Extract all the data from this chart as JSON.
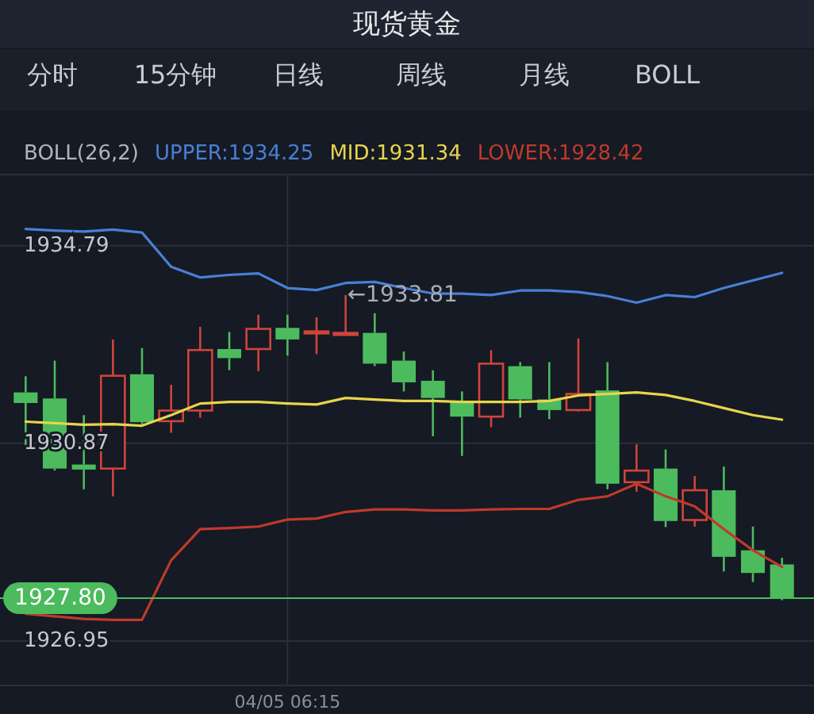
{
  "chart_data": {
    "type": "candlestick",
    "title": "现货黄金",
    "legend_title": "BOLL(26,2)",
    "legend": "top left",
    "grid": true,
    "categories": [
      null,
      null,
      null,
      null,
      null,
      null,
      null,
      null,
      null,
      "04/05 06:15",
      null,
      null,
      null,
      null,
      null,
      null,
      null,
      null,
      null,
      null,
      null,
      null,
      null,
      null,
      null,
      null,
      null
    ],
    "ohlc": [
      [
        1931.88,
        1932.2,
        1930.73,
        1931.67
      ],
      [
        1931.76,
        1932.51,
        1930.33,
        1930.37
      ],
      [
        1930.45,
        1931.43,
        1929.96,
        1930.35
      ],
      [
        1930.37,
        1932.93,
        1929.82,
        1932.21
      ],
      [
        1932.24,
        1932.76,
        1931.25,
        1931.29
      ],
      [
        1931.31,
        1932.03,
        1931.08,
        1931.52
      ],
      [
        1931.52,
        1933.18,
        1931.38,
        1932.72
      ],
      [
        1932.74,
        1933.08,
        1932.32,
        1932.56
      ],
      [
        1932.74,
        1933.42,
        1932.3,
        1933.14
      ],
      [
        1933.16,
        1933.42,
        1932.61,
        1932.93
      ],
      [
        1933.07,
        1933.37,
        1932.64,
        1933.09
      ],
      [
        1933.05,
        1933.81,
        1933.02,
        1933.06
      ],
      [
        1933.06,
        1933.45,
        1932.4,
        1932.45
      ],
      [
        1932.51,
        1932.69,
        1931.9,
        1932.08
      ],
      [
        1932.11,
        1932.32,
        1931.01,
        1931.77
      ],
      [
        1931.71,
        1931.9,
        1930.62,
        1931.4
      ],
      [
        1931.4,
        1932.72,
        1931.19,
        1932.45
      ],
      [
        1932.4,
        1932.48,
        1931.38,
        1931.74
      ],
      [
        1931.74,
        1932.48,
        1931.35,
        1931.53
      ],
      [
        1931.53,
        1932.95,
        1931.5,
        1931.85
      ],
      [
        1931.92,
        1932.48,
        1929.96,
        1930.07
      ],
      [
        1930.1,
        1930.85,
        1929.91,
        1930.33
      ],
      [
        1930.37,
        1930.75,
        1929.21,
        1929.33
      ],
      [
        1929.35,
        1930.22,
        1929.22,
        1929.94
      ],
      [
        1929.94,
        1930.41,
        1928.33,
        1928.62
      ],
      [
        1928.75,
        1929.22,
        1928.12,
        1928.3
      ],
      [
        1928.47,
        1928.6,
        1927.76,
        1927.8
      ]
    ],
    "colors": [
      "#4cbb5d",
      "#4cbb5d",
      "#4cbb5d",
      "#d0443a",
      "#4cbb5d",
      "#d0443a",
      "#d0443a",
      "#4cbb5d",
      "#d0443a",
      "#4cbb5d",
      "#d0443a",
      "#d0443a",
      "#4cbb5d",
      "#4cbb5d",
      "#4cbb5d",
      "#4cbb5d",
      "#d0443a",
      "#4cbb5d",
      "#4cbb5d",
      "#d0443a",
      "#4cbb5d",
      "#d0443a",
      "#4cbb5d",
      "#d0443a",
      "#4cbb5d",
      "#4cbb5d",
      "#4cbb5d"
    ],
    "series": [
      {
        "type": "line",
        "name": "UPPER:1934.25",
        "color": "#4a7fd4",
        "values": [
          1935.12,
          1935.09,
          1935.07,
          1935.11,
          1935.05,
          1934.37,
          1934.16,
          1934.21,
          1934.24,
          1933.95,
          1933.91,
          1934.05,
          1934.07,
          1933.95,
          1933.84,
          1933.84,
          1933.81,
          1933.9,
          1933.9,
          1933.87,
          1933.79,
          1933.66,
          1933.81,
          1933.77,
          1933.95,
          1934.1,
          1934.25
        ]
      },
      {
        "type": "line",
        "name": "MID:1931.34",
        "color": "#e8d44d",
        "values": [
          1931.3,
          1931.27,
          1931.24,
          1931.25,
          1931.22,
          1931.43,
          1931.66,
          1931.69,
          1931.69,
          1931.66,
          1931.64,
          1931.77,
          1931.74,
          1931.71,
          1931.71,
          1931.69,
          1931.69,
          1931.69,
          1931.71,
          1931.82,
          1931.85,
          1931.88,
          1931.83,
          1931.71,
          1931.57,
          1931.43,
          1931.34
        ]
      },
      {
        "type": "line",
        "name": "LOWER:1928.42",
        "color": "#c0392b",
        "values": [
          1927.49,
          1927.44,
          1927.39,
          1927.37,
          1927.37,
          1928.55,
          1929.17,
          1929.19,
          1929.22,
          1929.36,
          1929.38,
          1929.51,
          1929.56,
          1929.56,
          1929.54,
          1929.54,
          1929.56,
          1929.57,
          1929.57,
          1929.75,
          1929.82,
          1930.07,
          1929.82,
          1929.62,
          1929.17,
          1928.75,
          1928.42
        ]
      }
    ],
    "ylim": [
      1926.07,
      1936.2
    ],
    "yticks": [
      1934.79,
      1930.87,
      1926.95
    ],
    "ref_lines": [
      {
        "axis": "y",
        "value": 1927.8,
        "label": "1927.80",
        "color": "#4cbb5d"
      }
    ],
    "annotations": [
      "分时",
      "15分钟",
      "日线",
      "周线",
      "月线",
      "BOLL",
      {
        "text": "←1933.81",
        "y": 1933.81
      }
    ]
  }
}
